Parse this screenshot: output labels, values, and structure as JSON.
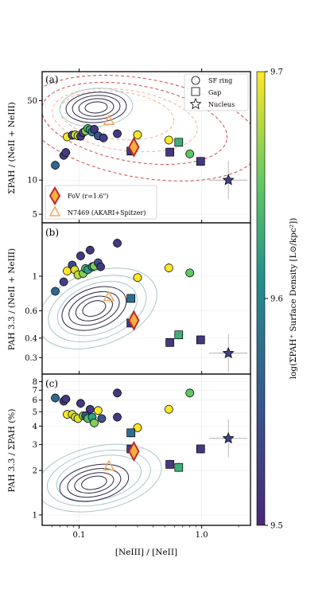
{
  "chart_data": [
    {
      "panel": "(a)",
      "type": "scatter",
      "ylabel": "ΣPAH / (NeII + NeIII)",
      "xlabel": "",
      "xlim": [
        0.05,
        2.5
      ],
      "ylim": [
        4.2,
        90
      ],
      "yscale": "log",
      "xscale": "log",
      "yticks": [
        {
          "v": 5,
          "label": "5"
        },
        {
          "v": 10,
          "label": "10"
        },
        {
          "v": 50,
          "label": "50"
        }
      ],
      "marker_legend": [
        {
          "marker": "circle",
          "label": "SF ring"
        },
        {
          "marker": "square",
          "label": "Gap"
        },
        {
          "marker": "star",
          "label": "Nucleus"
        }
      ],
      "legend": [
        {
          "marker": "diamond",
          "label": "FoV (r=1.6\")"
        },
        {
          "marker": "triangle",
          "label": "N7469 (AKARI+Spitzer)"
        }
      ],
      "series": [
        {
          "name": "SF ring",
          "marker": "circle",
          "points": [
            {
              "x": 0.064,
              "y": 13.5,
              "c": 9.57
            },
            {
              "x": 0.075,
              "y": 16.5,
              "c": 9.53
            },
            {
              "x": 0.078,
              "y": 17.5,
              "c": 9.52
            },
            {
              "x": 0.08,
              "y": 24.0,
              "c": 9.7
            },
            {
              "x": 0.088,
              "y": 24.8,
              "c": 9.54
            },
            {
              "x": 0.093,
              "y": 25.0,
              "c": 9.69
            },
            {
              "x": 0.098,
              "y": 24.5,
              "c": 9.68
            },
            {
              "x": 0.103,
              "y": 24.3,
              "c": 9.52
            },
            {
              "x": 0.108,
              "y": 26.2,
              "c": 9.53
            },
            {
              "x": 0.113,
              "y": 27.0,
              "c": 9.66
            },
            {
              "x": 0.118,
              "y": 28.5,
              "c": 9.64
            },
            {
              "x": 0.123,
              "y": 27.8,
              "c": 9.62
            },
            {
              "x": 0.128,
              "y": 26.5,
              "c": 9.6
            },
            {
              "x": 0.133,
              "y": 28.0,
              "c": 9.52
            },
            {
              "x": 0.143,
              "y": 24.5,
              "c": 9.55
            },
            {
              "x": 0.158,
              "y": 23.5,
              "c": 9.53
            },
            {
              "x": 0.205,
              "y": 25.6,
              "c": 9.52
            },
            {
              "x": 0.3,
              "y": 25.0,
              "c": 9.7
            },
            {
              "x": 0.54,
              "y": 22.5,
              "c": 9.7
            },
            {
              "x": 0.8,
              "y": 17.0,
              "c": 9.65
            }
          ]
        },
        {
          "name": "Gap",
          "marker": "square",
          "points": [
            {
              "x": 0.265,
              "y": 18.0,
              "c": 9.52
            },
            {
              "x": 0.55,
              "y": 17.6,
              "c": 9.52
            },
            {
              "x": 0.65,
              "y": 21.5,
              "c": 9.63
            },
            {
              "x": 0.98,
              "y": 14.6,
              "c": 9.52
            }
          ]
        },
        {
          "name": "Nucleus",
          "marker": "star",
          "points": [
            {
              "x": 1.65,
              "y": 10.0,
              "c": 9.53
            }
          ]
        },
        {
          "name": "FoV (r=1.6\")",
          "marker": "diamond",
          "points": [
            {
              "x": 0.28,
              "y": 19.5
            }
          ]
        },
        {
          "name": "N7469 (AKARI+Spitzer)",
          "marker": "triangle",
          "points": [
            {
              "x": 0.175,
              "y": 33.5
            }
          ]
        }
      ]
    },
    {
      "panel": "(b)",
      "type": "scatter",
      "ylabel": "PAH 3.3 / (NeII + NeIII)",
      "xlabel": "",
      "xlim": [
        0.05,
        2.5
      ],
      "ylim": [
        0.235,
        2.2
      ],
      "yscale": "log",
      "xscale": "log",
      "yticks": [
        {
          "v": 0.3,
          "label": "0.3"
        },
        {
          "v": 0.4,
          "label": "0.4"
        },
        {
          "v": 0.6,
          "label": "0.6"
        },
        {
          "v": 1,
          "label": "1"
        }
      ],
      "series": [
        {
          "name": "SF ring",
          "marker": "circle",
          "points": [
            {
              "x": 0.064,
              "y": 0.8,
              "c": 9.57
            },
            {
              "x": 0.075,
              "y": 0.92,
              "c": 9.53
            },
            {
              "x": 0.08,
              "y": 1.08,
              "c": 9.7
            },
            {
              "x": 0.088,
              "y": 1.18,
              "c": 9.54
            },
            {
              "x": 0.092,
              "y": 1.1,
              "c": 9.69
            },
            {
              "x": 0.098,
              "y": 1.02,
              "c": 9.68
            },
            {
              "x": 0.103,
              "y": 1.35,
              "c": 9.52
            },
            {
              "x": 0.108,
              "y": 1.04,
              "c": 9.66
            },
            {
              "x": 0.113,
              "y": 1.12,
              "c": 9.64
            },
            {
              "x": 0.118,
              "y": 1.1,
              "c": 9.62
            },
            {
              "x": 0.123,
              "y": 1.47,
              "c": 9.52
            },
            {
              "x": 0.128,
              "y": 1.15,
              "c": 9.6
            },
            {
              "x": 0.133,
              "y": 1.16,
              "c": 9.66
            },
            {
              "x": 0.143,
              "y": 1.22,
              "c": 9.55
            },
            {
              "x": 0.15,
              "y": 1.15,
              "c": 9.52
            },
            {
              "x": 0.205,
              "y": 1.63,
              "c": 9.52
            },
            {
              "x": 0.3,
              "y": 0.98,
              "c": 9.7
            },
            {
              "x": 0.54,
              "y": 1.13,
              "c": 9.7
            },
            {
              "x": 0.8,
              "y": 1.05,
              "c": 9.65
            }
          ]
        },
        {
          "name": "Gap",
          "marker": "square",
          "points": [
            {
              "x": 0.265,
              "y": 0.5,
              "c": 9.52
            },
            {
              "x": 0.265,
              "y": 0.72,
              "c": 9.58
            },
            {
              "x": 0.55,
              "y": 0.375,
              "c": 9.52
            },
            {
              "x": 0.65,
              "y": 0.42,
              "c": 9.63
            },
            {
              "x": 0.98,
              "y": 0.39,
              "c": 9.52
            }
          ]
        },
        {
          "name": "Nucleus",
          "marker": "star",
          "points": [
            {
              "x": 1.65,
              "y": 0.32,
              "c": 9.53
            }
          ]
        },
        {
          "name": "FoV (r=1.6\")",
          "marker": "diamond",
          "points": [
            {
              "x": 0.28,
              "y": 0.52
            }
          ]
        },
        {
          "name": "N7469 (AKARI+Spitzer)",
          "marker": "triangle",
          "points": [
            {
              "x": 0.175,
              "y": 0.74
            }
          ]
        }
      ]
    },
    {
      "panel": "(c)",
      "type": "scatter",
      "ylabel": "PAH 3.3 / ΣPAH (%)",
      "xlabel": "[NeIII] / [NeII]",
      "xlim": [
        0.05,
        2.5
      ],
      "xscale": "log",
      "ylim": [
        0.85,
        9.0
      ],
      "yscale": "log",
      "xticks": [
        {
          "v": 0.1,
          "label": "0.1"
        },
        {
          "v": 1.0,
          "label": "1.0"
        }
      ],
      "yticks": [
        {
          "v": 1,
          "label": "1"
        },
        {
          "v": 2,
          "label": "2"
        },
        {
          "v": 3,
          "label": "3"
        },
        {
          "v": 4,
          "label": "4"
        },
        {
          "v": 5,
          "label": "5"
        },
        {
          "v": 6,
          "label": "6"
        },
        {
          "v": 7,
          "label": "7"
        },
        {
          "v": 8,
          "label": "8"
        }
      ],
      "series": [
        {
          "name": "SF ring",
          "marker": "circle",
          "points": [
            {
              "x": 0.064,
              "y": 6.2,
              "c": 9.57
            },
            {
              "x": 0.075,
              "y": 5.9,
              "c": 9.53
            },
            {
              "x": 0.078,
              "y": 6.1,
              "c": 9.52
            },
            {
              "x": 0.08,
              "y": 4.8,
              "c": 9.7
            },
            {
              "x": 0.088,
              "y": 4.8,
              "c": 9.69
            },
            {
              "x": 0.093,
              "y": 4.6,
              "c": 9.68
            },
            {
              "x": 0.098,
              "y": 4.5,
              "c": 9.69
            },
            {
              "x": 0.103,
              "y": 5.7,
              "c": 9.52
            },
            {
              "x": 0.108,
              "y": 4.7,
              "c": 9.66
            },
            {
              "x": 0.113,
              "y": 4.7,
              "c": 9.55
            },
            {
              "x": 0.118,
              "y": 4.5,
              "c": 9.64
            },
            {
              "x": 0.123,
              "y": 5.2,
              "c": 9.52
            },
            {
              "x": 0.128,
              "y": 4.6,
              "c": 9.62
            },
            {
              "x": 0.133,
              "y": 4.2,
              "c": 9.66
            },
            {
              "x": 0.143,
              "y": 5.1,
              "c": 9.7
            },
            {
              "x": 0.153,
              "y": 4.5,
              "c": 9.55
            },
            {
              "x": 0.205,
              "y": 4.6,
              "c": 9.52
            },
            {
              "x": 0.205,
              "y": 6.7,
              "c": 9.52
            },
            {
              "x": 0.3,
              "y": 3.9,
              "c": 9.7
            },
            {
              "x": 0.54,
              "y": 5.2,
              "c": 9.7
            },
            {
              "x": 0.8,
              "y": 6.7,
              "c": 9.65
            }
          ]
        },
        {
          "name": "Gap",
          "marker": "square",
          "points": [
            {
              "x": 0.265,
              "y": 2.8,
              "c": 9.52
            },
            {
              "x": 0.265,
              "y": 3.6,
              "c": 9.58
            },
            {
              "x": 0.55,
              "y": 2.2,
              "c": 9.52
            },
            {
              "x": 0.65,
              "y": 2.1,
              "c": 9.63
            },
            {
              "x": 0.98,
              "y": 2.8,
              "c": 9.52
            }
          ]
        },
        {
          "name": "Nucleus",
          "marker": "star",
          "points": [
            {
              "x": 1.65,
              "y": 3.3,
              "c": 9.53
            }
          ]
        },
        {
          "name": "FoV (r=1.6\")",
          "marker": "diamond",
          "points": [
            {
              "x": 0.28,
              "y": 2.7
            }
          ]
        },
        {
          "name": "N7469 (AKARI+Spitzer)",
          "marker": "triangle",
          "points": [
            {
              "x": 0.175,
              "y": 2.15
            }
          ]
        }
      ]
    }
  ],
  "colorbar": {
    "label": "log(ΣPAH⁺ Surface Density [L⊙/kpc²])",
    "range": [
      9.5,
      9.7
    ],
    "ticks": [
      {
        "v": 9.5,
        "label": "9.5"
      },
      {
        "v": 9.6,
        "label": "9.6"
      },
      {
        "v": 9.7,
        "label": "9.7"
      }
    ],
    "colormap": "viridis"
  },
  "colors": {
    "fov_face": "#f3b23b",
    "fov_edge": "#c0282a",
    "triangle": "#f5a55a",
    "contour_dark": "#2d2747",
    "contour_light": "#a8c7c6",
    "contour_red": "#c43a3a",
    "contour_salmon": "#f1a98c"
  }
}
